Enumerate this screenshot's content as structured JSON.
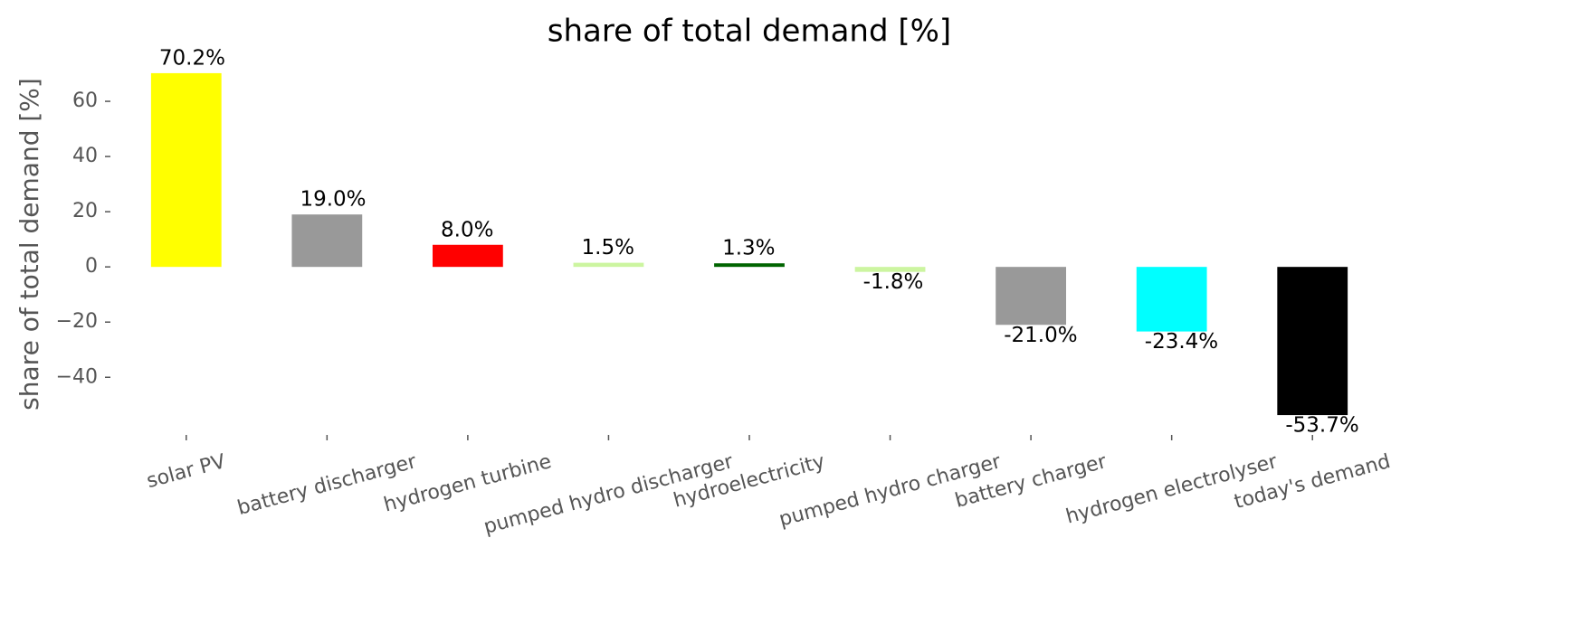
{
  "chart_data": {
    "type": "bar",
    "title": "share of total demand [%]",
    "ylabel": "share of total demand [%]",
    "categories": [
      "solar PV",
      "battery discharger",
      "hydrogen turbine",
      "pumped hydro discharger",
      "hydroelectricity",
      "pumped hydro charger",
      "battery charger",
      "hydrogen electrolyser",
      "today's demand"
    ],
    "values": [
      70.2,
      19.0,
      8.0,
      1.5,
      1.3,
      -1.8,
      -21.0,
      -23.4,
      -53.7
    ],
    "value_labels": [
      "70.2%",
      "19.0%",
      "8.0%",
      "1.5%",
      "1.3%",
      "-1.8%",
      "-21.0%",
      "-23.4%",
      "-53.7%"
    ],
    "colors": [
      "#ffff00",
      "#999999",
      "#ff0000",
      "#ccf5a0",
      "#006400",
      "#ccf5a0",
      "#999999",
      "#00ffff",
      "#000000"
    ],
    "ylim": [
      -59.9,
      76.4
    ],
    "yticks": [
      {
        "value": -40,
        "label": "−40"
      },
      {
        "value": -20,
        "label": "−20"
      },
      0,
      20,
      40,
      60
    ],
    "grid": false
  }
}
